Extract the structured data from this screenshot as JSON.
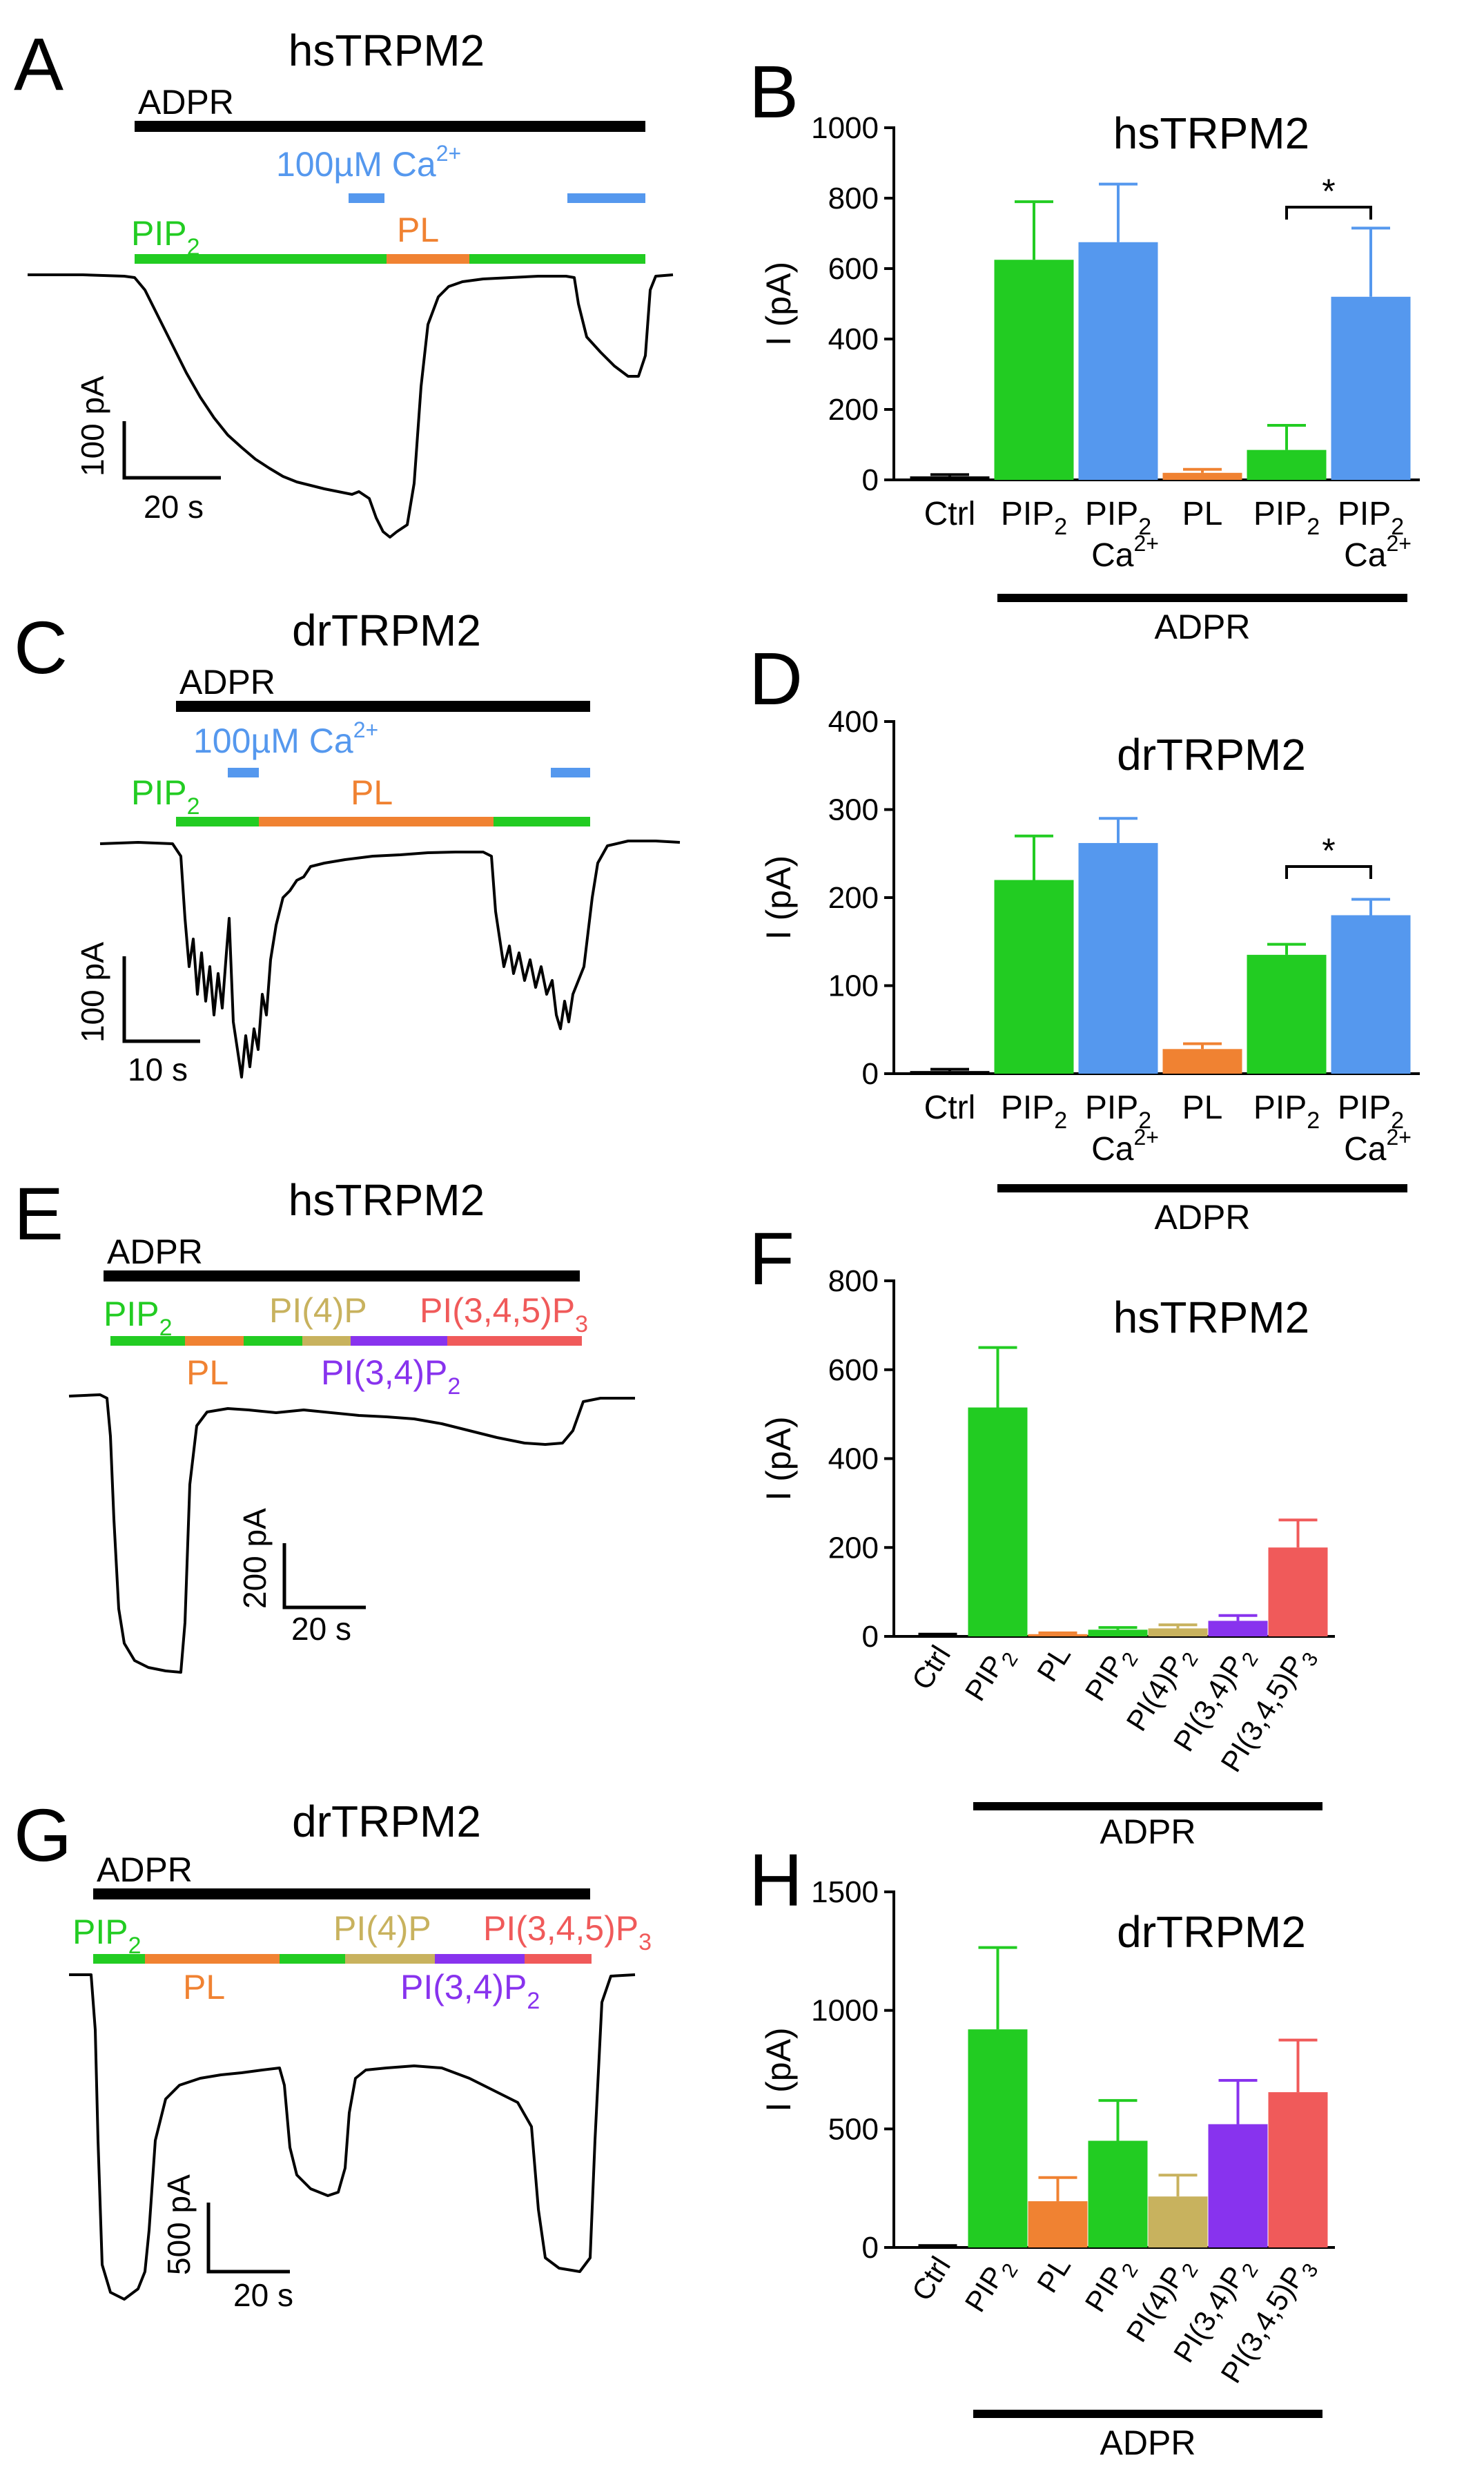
{
  "colors": {
    "pip2": "#22cc22",
    "pl": "#f08232",
    "ca": "#5598ee",
    "pi4p": "#c8b25e",
    "pi34": "#8833ee",
    "pi345": "#f05a5a",
    "black": "#000000"
  },
  "labels": {
    "adpr": "ADPR",
    "ca": "100µM Ca",
    "ca_sup": "2+",
    "pip": "PIP",
    "sub2": "2",
    "pl": "PL",
    "pi4p": "PI(4)P",
    "pi34": "PI(3,4)P",
    "pi345": "PI(3,4,5)P",
    "sub3": "3",
    "scale_a_y": "100 pA",
    "scale_a_x": "20 s",
    "scale_c_y": "100 pA",
    "scale_c_x": "10 s",
    "scale_e_y": "200 pA",
    "scale_e_x": "20 s",
    "scale_g_y": "500 pA",
    "scale_g_x": "20 s",
    "star": "*",
    "ca_tick": "Ca"
  },
  "chart_data": [
    {
      "panel": "A",
      "type": "line",
      "title": "hsTRPM2",
      "description_labels": [
        "ADPR",
        "100µM Ca2+",
        "PIP2",
        "PL"
      ]
    },
    {
      "panel": "B",
      "type": "bar",
      "title": "hsTRPM2",
      "ylabel": "I (pA)",
      "ylim": [
        0,
        1000
      ],
      "yticks": [
        0,
        200,
        400,
        600,
        800,
        1000
      ],
      "categories": [
        "Ctrl",
        "PIP2",
        "PIP2 Ca2+",
        "PL",
        "PIP2",
        "PIP2 Ca2+"
      ],
      "values": [
        10,
        625,
        675,
        20,
        85,
        520
      ],
      "errors": [
        5,
        165,
        165,
        10,
        70,
        195
      ],
      "colors": [
        "#000000",
        "#22cc22",
        "#5598ee",
        "#f08232",
        "#22cc22",
        "#5598ee"
      ],
      "significance": [
        {
          "from": 4,
          "to": 5,
          "label": "*"
        }
      ],
      "group_label": "ADPR",
      "group_from": 1,
      "group_to": 5
    },
    {
      "panel": "C",
      "type": "line",
      "title": "drTRPM2"
    },
    {
      "panel": "D",
      "type": "bar",
      "title": "drTRPM2",
      "ylabel": "I (pA)",
      "ylim": [
        0,
        400
      ],
      "yticks": [
        0,
        100,
        200,
        300,
        400
      ],
      "categories": [
        "Ctrl",
        "PIP2",
        "PIP2 Ca2+",
        "PL",
        "PIP2",
        "PIP2 Ca2+"
      ],
      "values": [
        3,
        220,
        262,
        28,
        135,
        180
      ],
      "errors": [
        2,
        50,
        28,
        6,
        12,
        18
      ],
      "colors": [
        "#000000",
        "#22cc22",
        "#5598ee",
        "#f08232",
        "#22cc22",
        "#5598ee"
      ],
      "significance": [
        {
          "from": 4,
          "to": 5,
          "label": "*"
        }
      ],
      "group_label": "ADPR",
      "group_from": 1,
      "group_to": 5
    },
    {
      "panel": "E",
      "type": "line",
      "title": "hsTRPM2"
    },
    {
      "panel": "F",
      "type": "bar",
      "title": "hsTRPM2",
      "ylabel": "I (pA)",
      "ylim": [
        0,
        800
      ],
      "yticks": [
        0,
        200,
        400,
        600,
        800
      ],
      "categories": [
        "Ctrl",
        "PIP2",
        "PL",
        "PIP2",
        "PI(4)P2",
        "PI(3,4)P2",
        "PI(3,4,5)P3"
      ],
      "values": [
        3,
        515,
        5,
        15,
        18,
        35,
        200
      ],
      "errors": [
        2,
        135,
        3,
        5,
        8,
        12,
        62
      ],
      "colors": [
        "#000000",
        "#22cc22",
        "#f08232",
        "#22cc22",
        "#c8b25e",
        "#8833ee",
        "#f05a5a"
      ],
      "group_label": "ADPR",
      "group_from": 1,
      "group_to": 6
    },
    {
      "panel": "G",
      "type": "line",
      "title": "drTRPM2"
    },
    {
      "panel": "H",
      "type": "bar",
      "title": "drTRPM2",
      "ylabel": "I (pA)",
      "ylim": [
        0,
        1500
      ],
      "yticks": [
        0,
        500,
        1000,
        1500
      ],
      "categories": [
        "Ctrl",
        "PIP2",
        "PL",
        "PIP2",
        "PI(4)P2",
        "PI(3,4)P2",
        "PI(3,4,5)P3"
      ],
      "values": [
        5,
        920,
        195,
        450,
        215,
        520,
        655
      ],
      "errors": [
        3,
        345,
        100,
        170,
        90,
        185,
        220
      ],
      "colors": [
        "#000000",
        "#22cc22",
        "#f08232",
        "#22cc22",
        "#c8b25e",
        "#8833ee",
        "#f05a5a"
      ],
      "group_label": "ADPR",
      "group_from": 1,
      "group_to": 6
    }
  ]
}
